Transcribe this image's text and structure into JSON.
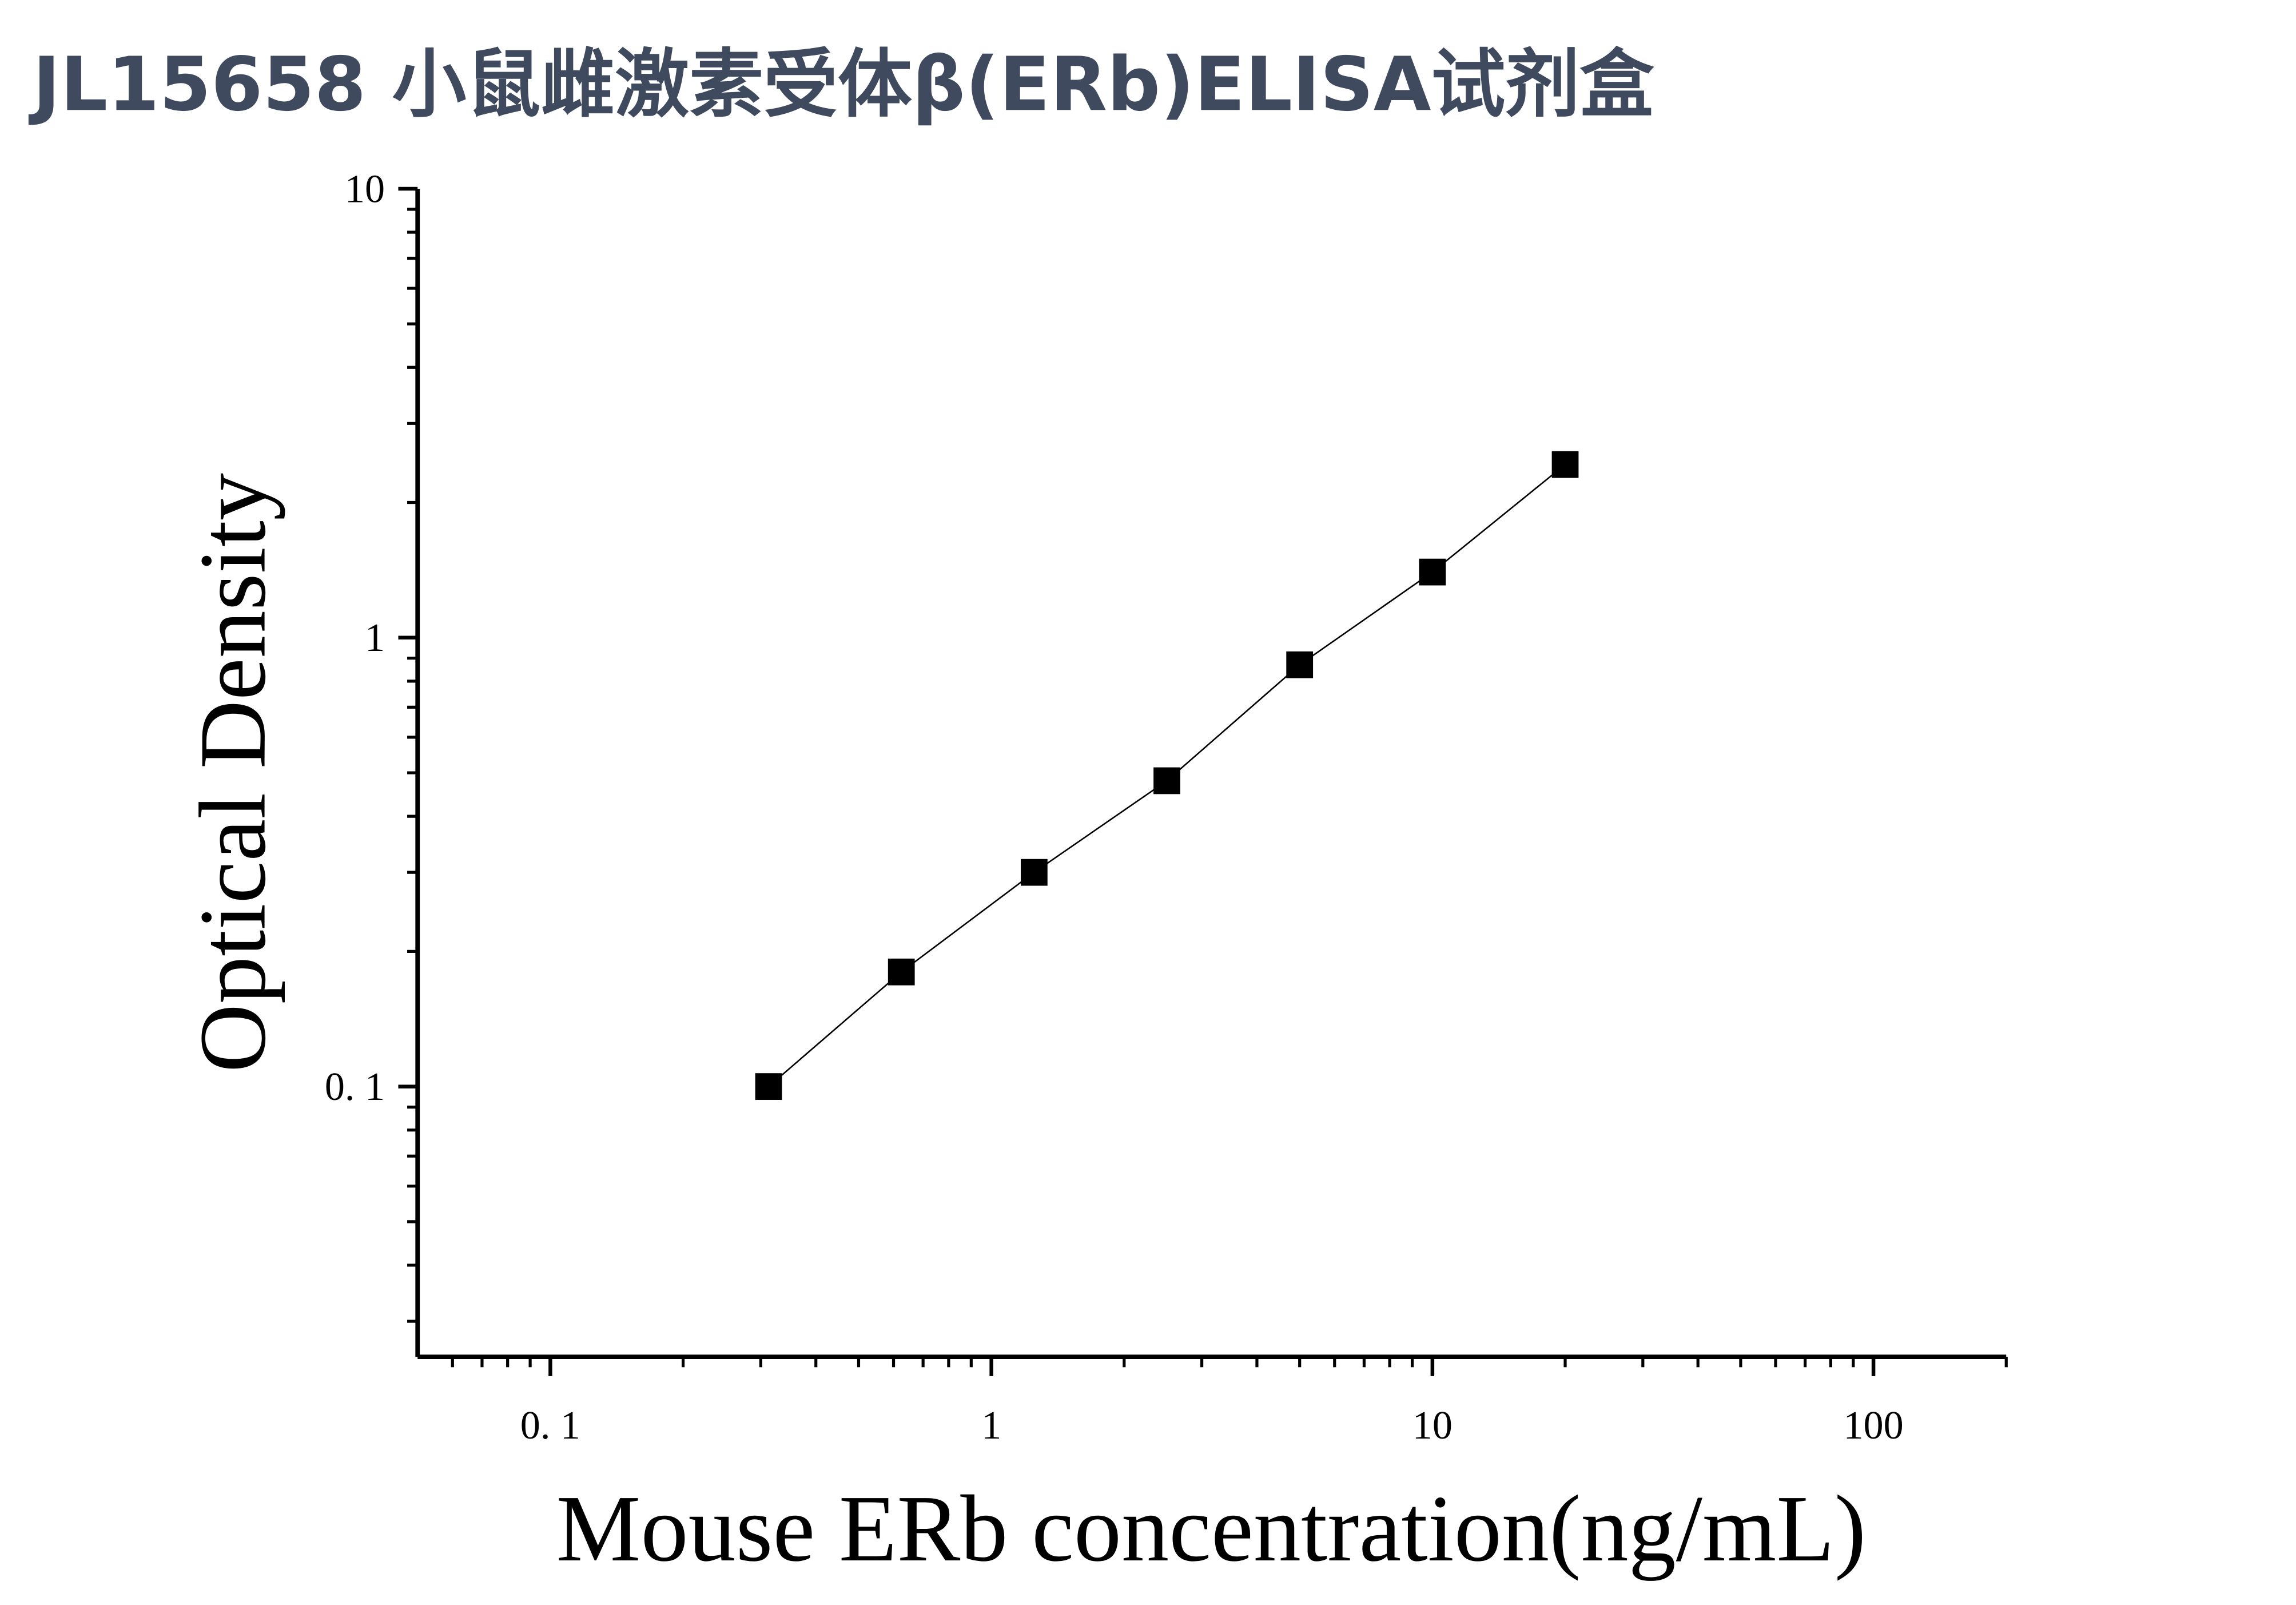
{
  "chart_data": {
    "type": "line",
    "title": "JL15658 小鼠雌激素受体β(ERb)ELISA试剂盒",
    "x_label": "Mouse ERb concentration(ng/mL)",
    "y_label": "Optical Density",
    "x": [
      0.3125,
      0.625,
      1.25,
      2.5,
      5,
      10,
      20
    ],
    "series": [
      {
        "color": "#000000",
        "values": [
          0.1,
          0.18,
          0.3,
          0.48,
          0.87,
          1.4,
          2.43
        ]
      }
    ],
    "xscale": "log",
    "yscale": "log",
    "xlim": [
      0.05,
      200
    ],
    "ylim": [
      0.025,
      10
    ],
    "xticks": [
      {
        "value": 0.1,
        "label": "0. 1"
      },
      1,
      10,
      100
    ],
    "yticks": [
      {
        "value": 0.1,
        "label": "0. 1"
      },
      1,
      10
    ],
    "xminorticks": [
      0.06,
      0.07,
      0.08,
      0.09,
      0.2,
      0.3,
      0.4,
      0.5,
      0.6,
      0.7,
      0.8,
      0.9,
      2,
      3,
      4,
      5,
      6,
      7,
      8,
      9,
      20,
      30,
      40,
      50,
      60,
      70,
      80,
      90,
      200
    ],
    "yminorticks": [
      0.03,
      0.04,
      0.05,
      0.06,
      0.07,
      0.08,
      0.09,
      0.2,
      0.3,
      0.4,
      0.5,
      0.6,
      0.7,
      0.8,
      0.9,
      2,
      3,
      4,
      5,
      6,
      7,
      8,
      9
    ],
    "grid": false
  }
}
